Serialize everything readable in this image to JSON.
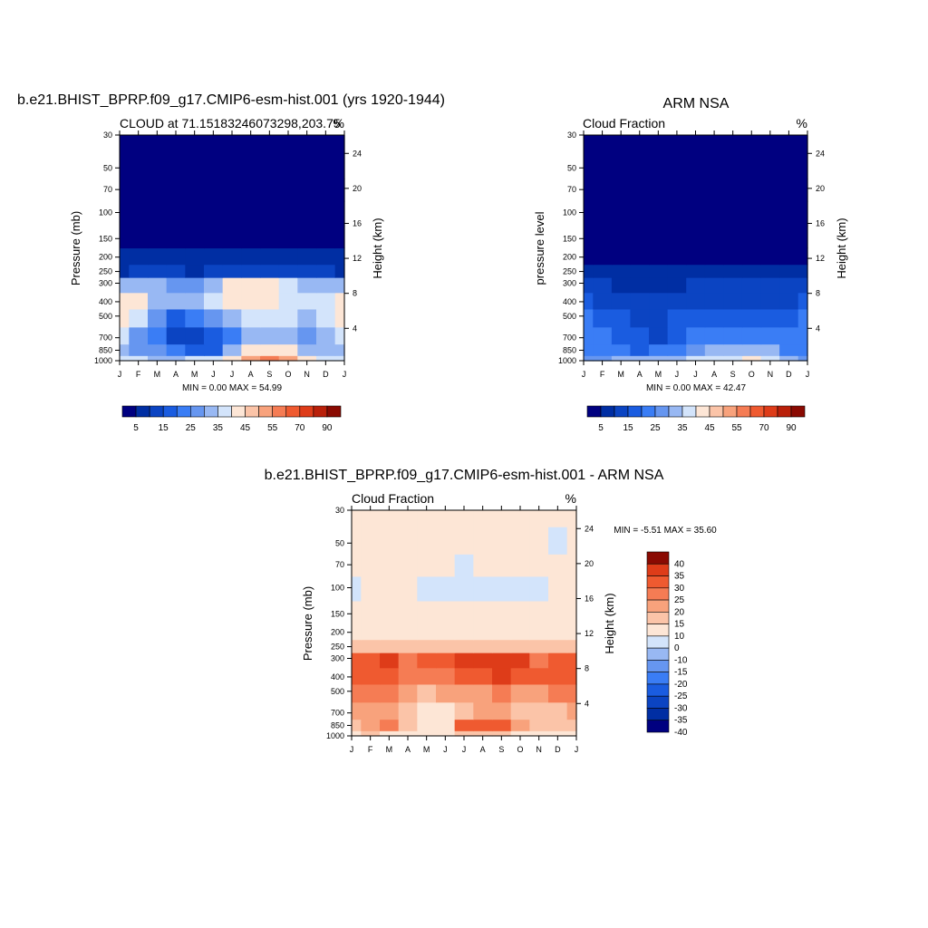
{
  "colors": {
    "seq": [
      "#000080",
      "#002ea3",
      "#0b44c2",
      "#1a5ce0",
      "#3a7df5",
      "#6696f0",
      "#98b8f3",
      "#d3e4fb",
      "#fde6d6",
      "#fbc4a8",
      "#f8a27c",
      "#f57c54",
      "#ef5a30",
      "#de3c19",
      "#b9200a",
      "#8a0a02"
    ],
    "diff": [
      "#000080",
      "#002ea3",
      "#0b44c2",
      "#1a5ce0",
      "#3a7df5",
      "#6696f0",
      "#98b8f3",
      "#d3e4fb",
      "#fde6d6",
      "#fbc4a8",
      "#f8a27c",
      "#f57c54",
      "#ef5a30",
      "#de3c19",
      "#8a0a02"
    ]
  },
  "panels": {
    "model": {
      "title": "b.e21.BHIST_BPRP.f09_g17.CMIP6-esm-hist.001 (yrs 1920-1944)",
      "left_label": "CLOUD at 71.15183246073298,203.75",
      "right_label": "%",
      "ylabel": "Pressure (mb)",
      "ylabel_right": "Height (km)",
      "stats": "MIN =   0.00 MAX =  54.99"
    },
    "obs": {
      "title": "ARM NSA",
      "left_label": "Cloud Fraction",
      "right_label": "%",
      "ylabel": "pressure level",
      "ylabel_right": "Height (km)",
      "stats": "MIN =   0.00 MAX =  42.47"
    },
    "diff": {
      "title": "b.e21.BHIST_BPRP.f09_g17.CMIP6-esm-hist.001 - ARM NSA",
      "left_label": "Cloud Fraction",
      "right_label": "%",
      "ylabel": "Pressure (mb)",
      "ylabel_right": "Height (km)",
      "stats": "MIN =  -5.51 MAX =  35.60"
    }
  },
  "chart_data": [
    {
      "type": "heatmap",
      "title": "b.e21.BHIST_BPRP.f09_g17.CMIP6-esm-hist.001 (yrs 1920-1944)",
      "subtitle": "CLOUD at 71.15183246073298,203.75",
      "units": "%",
      "xlabel": "",
      "ylabel": "Pressure (mb)",
      "ylabel_right": "Height (km)",
      "x": [
        "J",
        "F",
        "M",
        "A",
        "M",
        "J",
        "J",
        "A",
        "S",
        "O",
        "N",
        "D",
        "J"
      ],
      "y": [
        1000,
        850,
        700,
        500,
        400,
        300,
        250,
        200,
        150,
        100,
        70,
        50,
        30
      ],
      "y_ticks": [
        30,
        50,
        70,
        100,
        150,
        200,
        250,
        300,
        400,
        500,
        700,
        850,
        1000
      ],
      "height_ticks_km": [
        4,
        8,
        12,
        16,
        20,
        24
      ],
      "levels": [
        5,
        10,
        15,
        20,
        25,
        30,
        35,
        40,
        45,
        50,
        55,
        60,
        70,
        80,
        90
      ],
      "colorbar_labels": [
        "5",
        "15",
        "25",
        "35",
        "45",
        "55",
        "70",
        "90"
      ],
      "z": [
        [
          36,
          36,
          34,
          34,
          36,
          38,
          44,
          50,
          55,
          52,
          40,
          36,
          36
        ],
        [
          32,
          28,
          25,
          20,
          16,
          18,
          30,
          40,
          44,
          42,
          34,
          30,
          32
        ],
        [
          36,
          28,
          24,
          14,
          10,
          16,
          24,
          30,
          32,
          30,
          28,
          30,
          36
        ],
        [
          40,
          36,
          28,
          18,
          20,
          28,
          34,
          36,
          36,
          36,
          34,
          38,
          40
        ],
        [
          40,
          40,
          34,
          30,
          32,
          36,
          40,
          40,
          40,
          38,
          36,
          38,
          40
        ],
        [
          30,
          32,
          30,
          26,
          28,
          34,
          40,
          42,
          44,
          36,
          32,
          30,
          30
        ],
        [
          8,
          10,
          12,
          10,
          9,
          10,
          12,
          12,
          12,
          12,
          10,
          10,
          8
        ],
        [
          5,
          5,
          5,
          5,
          5,
          5,
          5,
          5,
          5,
          5,
          5,
          5,
          5
        ],
        [
          0,
          0,
          0,
          0,
          0,
          0,
          0,
          0,
          0,
          0,
          0,
          0,
          0
        ],
        [
          0,
          0,
          0,
          0,
          0,
          0,
          0,
          0,
          0,
          0,
          0,
          0,
          0
        ],
        [
          0,
          0,
          0,
          0,
          0,
          0,
          0,
          0,
          0,
          0,
          0,
          0,
          0
        ],
        [
          0,
          0,
          0,
          0,
          0,
          0,
          0,
          0,
          0,
          0,
          0,
          0,
          0
        ],
        [
          0,
          0,
          0,
          0,
          0,
          0,
          0,
          0,
          0,
          0,
          0,
          0,
          0
        ]
      ],
      "min": 0.0,
      "max": 54.99
    },
    {
      "type": "heatmap",
      "title": "ARM NSA",
      "subtitle": "Cloud Fraction",
      "units": "%",
      "xlabel": "",
      "ylabel": "pressure level",
      "ylabel_right": "Height (km)",
      "x": [
        "J",
        "F",
        "M",
        "A",
        "M",
        "J",
        "J",
        "A",
        "S",
        "O",
        "N",
        "D",
        "J"
      ],
      "y": [
        1000,
        850,
        700,
        500,
        400,
        300,
        250,
        200,
        150,
        100,
        70,
        50,
        30
      ],
      "y_ticks": [
        30,
        50,
        70,
        100,
        150,
        200,
        250,
        300,
        400,
        500,
        700,
        850,
        1000
      ],
      "height_ticks_km": [
        4,
        8,
        12,
        16,
        20,
        24
      ],
      "levels": [
        5,
        10,
        15,
        20,
        25,
        30,
        35,
        40,
        45,
        50,
        55,
        60,
        70,
        80,
        90
      ],
      "colorbar_labels": [
        "5",
        "15",
        "25",
        "35",
        "45",
        "55",
        "70",
        "90"
      ],
      "z": [
        [
          28,
          28,
          30,
          30,
          30,
          32,
          36,
          36,
          36,
          42,
          36,
          30,
          28
        ],
        [
          24,
          22,
          24,
          18,
          20,
          22,
          28,
          30,
          32,
          34,
          30,
          24,
          24
        ],
        [
          22,
          20,
          18,
          16,
          14,
          16,
          20,
          22,
          22,
          22,
          20,
          20,
          22
        ],
        [
          20,
          18,
          16,
          14,
          14,
          16,
          18,
          18,
          18,
          18,
          18,
          18,
          20
        ],
        [
          16,
          14,
          14,
          12,
          12,
          14,
          14,
          14,
          14,
          14,
          14,
          14,
          16
        ],
        [
          10,
          10,
          8,
          8,
          8,
          8,
          10,
          12,
          12,
          10,
          10,
          10,
          10
        ],
        [
          5,
          5,
          5,
          5,
          5,
          5,
          6,
          6,
          6,
          6,
          5,
          5,
          5
        ],
        [
          0,
          0,
          0,
          0,
          0,
          0,
          0,
          0,
          0,
          0,
          0,
          0,
          0
        ],
        [
          0,
          0,
          0,
          0,
          0,
          0,
          0,
          0,
          0,
          0,
          0,
          0,
          0
        ],
        [
          0,
          0,
          0,
          0,
          0,
          0,
          0,
          0,
          0,
          0,
          0,
          0,
          0
        ],
        [
          0,
          0,
          0,
          0,
          0,
          0,
          0,
          0,
          0,
          0,
          0,
          0,
          0
        ],
        [
          0,
          0,
          0,
          0,
          0,
          0,
          0,
          0,
          0,
          0,
          0,
          0,
          0
        ],
        [
          0,
          0,
          0,
          0,
          0,
          0,
          0,
          0,
          0,
          0,
          0,
          0,
          0
        ]
      ],
      "min": 0.0,
      "max": 42.47
    },
    {
      "type": "heatmap",
      "title": "b.e21.BHIST_BPRP.f09_g17.CMIP6-esm-hist.001 - ARM NSA",
      "subtitle": "Cloud Fraction",
      "units": "%",
      "xlabel": "",
      "ylabel": "Pressure (mb)",
      "ylabel_right": "Height (km)",
      "x": [
        "J",
        "F",
        "M",
        "A",
        "M",
        "J",
        "J",
        "A",
        "S",
        "O",
        "N",
        "D",
        "J"
      ],
      "y": [
        1000,
        850,
        700,
        500,
        400,
        300,
        250,
        200,
        150,
        100,
        70,
        50,
        30
      ],
      "y_ticks": [
        30,
        50,
        70,
        100,
        150,
        200,
        250,
        300,
        400,
        500,
        700,
        850,
        1000
      ],
      "height_ticks_km": [
        4,
        8,
        12,
        16,
        20,
        24
      ],
      "levels": [
        -40,
        -35,
        -30,
        -25,
        -20,
        -15,
        -10,
        0,
        10,
        15,
        20,
        25,
        30,
        35,
        40
      ],
      "colorbar_labels": [
        "40",
        "35",
        "30",
        "25",
        "20",
        "15",
        "10",
        "0",
        "-10",
        "-15",
        "-20",
        "-25",
        "-30",
        "-35",
        "-40"
      ],
      "z": [
        [
          8,
          12,
          6,
          6,
          4,
          8,
          10,
          12,
          10,
          8,
          6,
          8,
          8
        ],
        [
          12,
          16,
          22,
          14,
          8,
          6,
          26,
          28,
          26,
          18,
          14,
          12,
          12
        ],
        [
          16,
          18,
          18,
          12,
          8,
          6,
          14,
          18,
          18,
          14,
          10,
          12,
          16
        ],
        [
          22,
          22,
          20,
          18,
          14,
          16,
          16,
          18,
          20,
          18,
          18,
          20,
          22
        ],
        [
          28,
          28,
          28,
          24,
          22,
          24,
          28,
          28,
          30,
          28,
          26,
          28,
          28
        ],
        [
          26,
          28,
          30,
          22,
          26,
          28,
          30,
          30,
          34,
          30,
          24,
          26,
          26
        ],
        [
          14,
          14,
          14,
          12,
          12,
          14,
          14,
          14,
          14,
          14,
          12,
          12,
          14
        ],
        [
          6,
          6,
          6,
          6,
          6,
          6,
          6,
          6,
          6,
          6,
          6,
          6,
          6
        ],
        [
          6,
          6,
          6,
          6,
          6,
          6,
          6,
          6,
          6,
          6,
          6,
          6,
          6
        ],
        [
          -4,
          4,
          4,
          4,
          -2,
          -2,
          -2,
          -2,
          -2,
          -2,
          -2,
          4,
          4
        ],
        [
          4,
          4,
          4,
          4,
          4,
          4,
          -2,
          4,
          4,
          4,
          4,
          4,
          4
        ],
        [
          4,
          4,
          4,
          4,
          4,
          4,
          4,
          4,
          4,
          4,
          4,
          -2,
          4
        ],
        [
          4,
          4,
          4,
          4,
          4,
          4,
          4,
          4,
          4,
          4,
          4,
          4,
          4
        ]
      ],
      "min": -5.51,
      "max": 35.6
    }
  ]
}
